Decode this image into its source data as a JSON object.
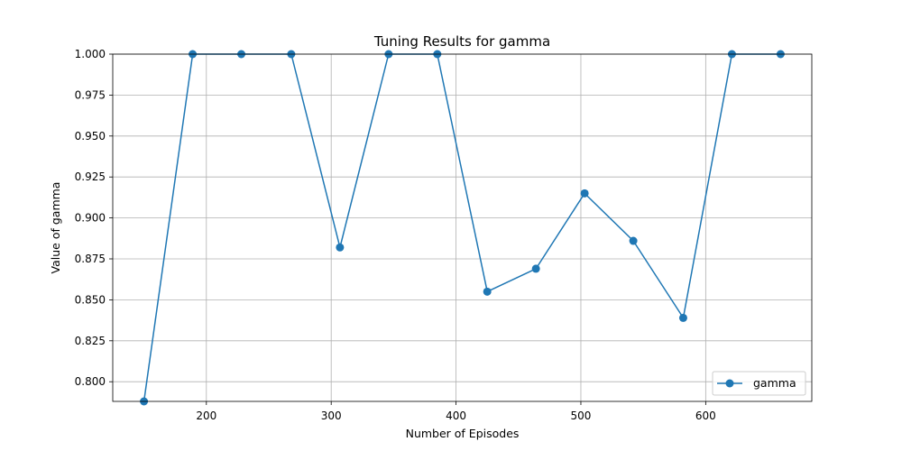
{
  "chart_data": {
    "type": "line",
    "title": "Tuning Results for gamma",
    "xlabel": "Number of Episodes",
    "ylabel": "Value of gamma",
    "xlim": [
      125,
      685
    ],
    "ylim": [
      0.788,
      1.0
    ],
    "xticks": [
      200,
      300,
      400,
      500,
      600
    ],
    "yticks": [
      0.8,
      0.825,
      0.85,
      0.875,
      0.9,
      0.925,
      0.95,
      0.975,
      1.0
    ],
    "ytick_format": 3,
    "grid": true,
    "legend_position": "bottom-right",
    "series": [
      {
        "name": "gamma",
        "color": "#1f77b4",
        "marker": "circle",
        "x": [
          150,
          189,
          228,
          268,
          307,
          346,
          385,
          425,
          464,
          503,
          542,
          582,
          621,
          660
        ],
        "y": [
          0.788,
          1.0,
          1.0,
          1.0,
          0.882,
          1.0,
          1.0,
          0.855,
          0.869,
          0.915,
          0.886,
          0.839,
          1.0,
          1.0
        ]
      }
    ]
  }
}
